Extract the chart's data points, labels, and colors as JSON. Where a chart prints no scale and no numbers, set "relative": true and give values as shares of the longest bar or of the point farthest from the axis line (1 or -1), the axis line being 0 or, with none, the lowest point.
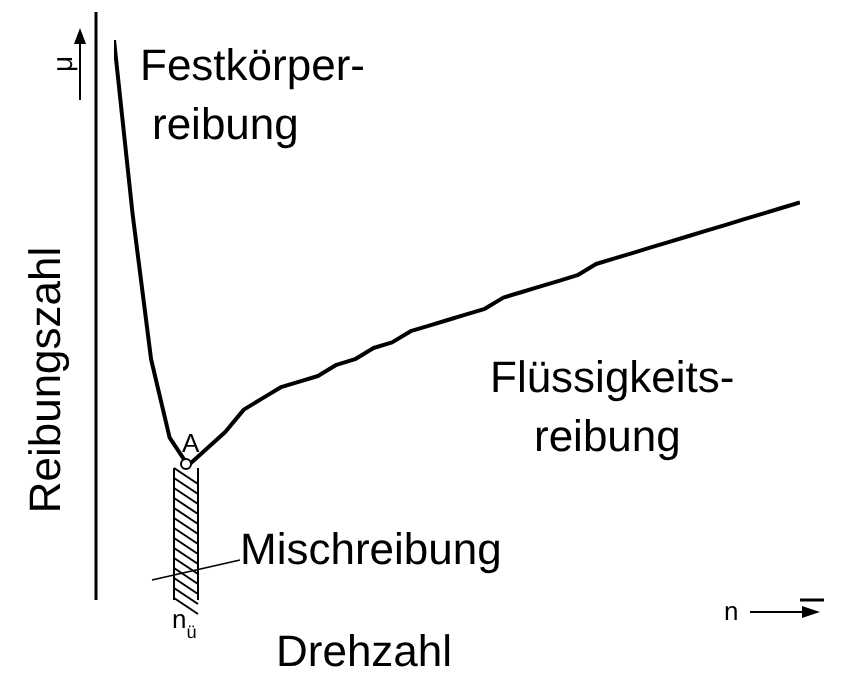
{
  "chart_data": {
    "type": "line",
    "relative": true,
    "xlabel": "Drehzahl",
    "ylabel": "Reibungszahl",
    "categories": [
      null,
      null,
      null,
      null,
      null,
      null,
      null,
      null,
      null,
      null,
      null,
      null,
      null,
      null,
      null,
      null,
      null,
      null,
      null,
      null,
      null,
      null,
      null,
      null,
      null,
      null,
      null,
      null,
      null,
      null,
      null,
      null,
      null,
      null,
      null,
      null,
      null,
      null
    ],
    "series": [
      {
        "color": "#000000",
        "values": [
          1.0,
          0.69,
          0.43,
          0.29,
          0.24,
          0.27,
          0.3,
          0.34,
          0.36,
          0.38,
          0.39,
          0.4,
          0.42,
          0.43,
          0.45,
          0.46,
          0.48,
          0.49,
          0.5,
          0.51,
          0.52,
          0.54,
          0.55,
          0.56,
          0.57,
          0.58,
          0.6,
          0.61,
          0.62,
          0.63,
          0.64,
          0.65,
          0.66,
          0.67,
          0.68,
          0.69,
          0.7,
          0.71
        ]
      }
    ],
    "annotations": [
      "Festkörper-\nreibung",
      "Flüssigkeits-\nreibung",
      "Mischreibung",
      "A",
      "μ",
      "n",
      "n$_{ü}$"
    ],
    "marker": "none",
    "line_style": "solid"
  }
}
